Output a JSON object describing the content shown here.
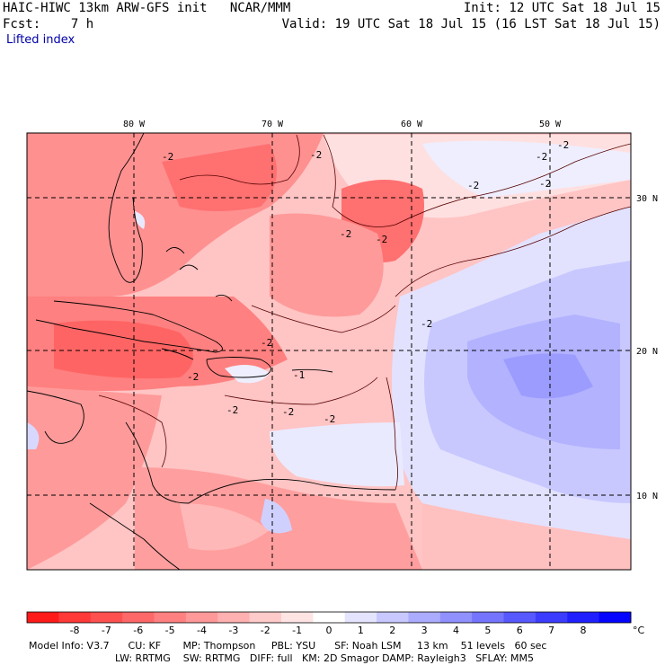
{
  "header": {
    "model_line": "HAIC-HIWC 13km ARW-GFS init   NCAR/MMM",
    "init_line": "Init: 12 UTC Sat 18 Jul 15",
    "fcst_line": "Fcst:    7 h",
    "valid_line": "Valid: 19 UTC Sat 18 Jul 15 (16 LST Sat 18 Jul 15)",
    "field_name": "Lifted index"
  },
  "map": {
    "lon_labels": [
      "80 W",
      "70 W",
      "60 W",
      "50 W"
    ],
    "lat_labels": [
      "30 N",
      "20 N",
      "10 N"
    ],
    "contour_labels": [
      "-2",
      "-2",
      "-2",
      "-2",
      "-2",
      "-2",
      "-2",
      "-2",
      "-2",
      "-2",
      "-2",
      "-2",
      "-1",
      "-2",
      "-2"
    ]
  },
  "colorbar": {
    "colors": [
      "#ff1a1a",
      "#ff3838",
      "#ff5050",
      "#ff6868",
      "#ff8080",
      "#ff9898",
      "#ffb0b0",
      "#ffcaca",
      "#ffe4e4",
      "#ffffff",
      "#e4e4ff",
      "#c8c8ff",
      "#acacff",
      "#9090ff",
      "#7474ff",
      "#5858ff",
      "#3c3cff",
      "#2020ff",
      "#0404ff"
    ],
    "tick_labels": [
      "-8",
      "-7",
      "-6",
      "-5",
      "-4",
      "-3",
      "-2",
      "-1",
      "0",
      "1",
      "2",
      "3",
      "4",
      "5",
      "6",
      "7",
      "8"
    ],
    "unit": "°C"
  },
  "footer": {
    "line1": "Model Info: V3.7      CU: KF       MP: Thompson     PBL: YSU      SF: Noah LSM     13 km    51 levels   60 sec",
    "line2": "LW: RRTMG    SW: RRTMG   DIFF: full   KM: 2D Smagor DAMP: Rayleigh3   SFLAY: MM5"
  }
}
